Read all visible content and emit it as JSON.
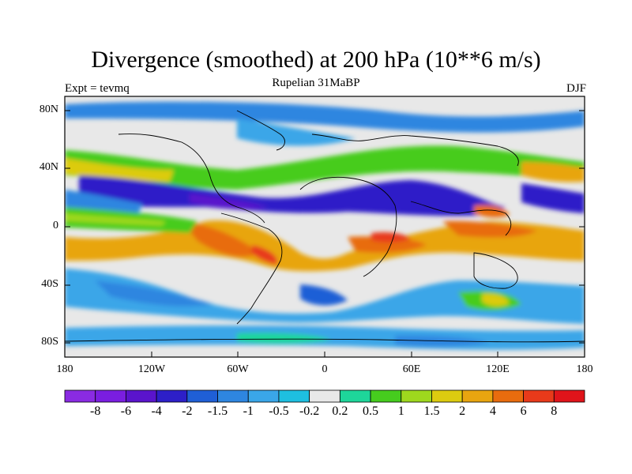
{
  "figure": {
    "title": "Divergence (smoothed) at 200 hPa (10**6 m/s)",
    "subtitle": "Rupelian  31MaBP",
    "left_label": "Expt = tevmq",
    "right_label": "DJF"
  },
  "axes": {
    "lat_labels": [
      "80N",
      "40N",
      "0",
      "40S",
      "80S"
    ],
    "lon_labels": [
      "180",
      "120W",
      "60W",
      "0",
      "60E",
      "120E",
      "180"
    ]
  },
  "colorbar": {
    "labels": [
      "-8",
      "-6",
      "-4",
      "-2",
      "-1.5",
      "-1",
      "-0.5",
      "-0.2",
      "0.2",
      "0.5",
      "1",
      "1.5",
      "2",
      "4",
      "6",
      "8"
    ],
    "colors": [
      "#8a2be2",
      "#7a1ee0",
      "#5a14cc",
      "#2d1fc8",
      "#1f5fd6",
      "#2e86e0",
      "#3aa6e8",
      "#1ebfe0",
      "#e8e8e8",
      "#1ed69a",
      "#46cc1e",
      "#9ed81e",
      "#dccb10",
      "#e8a510",
      "#e86c0e",
      "#e83a1a",
      "#e0141a"
    ]
  }
}
